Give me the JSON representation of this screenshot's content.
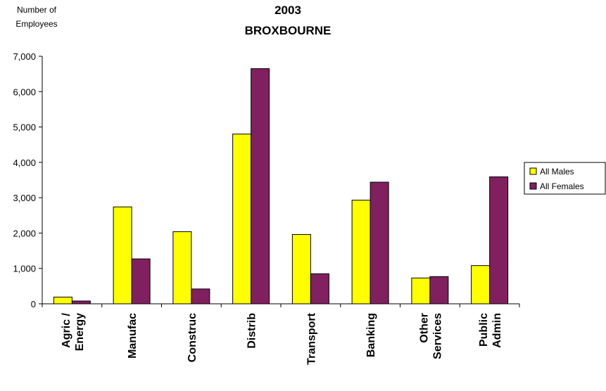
{
  "chart_data": {
    "type": "bar",
    "title_line1": "2003",
    "title_line2": "BROXBOURNE",
    "ylabel_line1": "Number of",
    "ylabel_line2": "Employees",
    "xlabel": "",
    "ylim": [
      0,
      7000
    ],
    "yticks": [
      0,
      1000,
      2000,
      3000,
      4000,
      5000,
      6000,
      7000
    ],
    "ytick_labels": [
      "0",
      "1,000",
      "2,000",
      "3,000",
      "4,000",
      "5,000",
      "6,000",
      "7,000"
    ],
    "categories": [
      [
        "Agric /",
        "Energy"
      ],
      [
        "Manufac"
      ],
      [
        "Construc"
      ],
      [
        "Distrib"
      ],
      [
        "Transport"
      ],
      [
        "Banking"
      ],
      [
        "Other",
        "Services"
      ],
      [
        "Public",
        "Admin"
      ]
    ],
    "series": [
      {
        "name": "All Males",
        "color": "#ffff00",
        "values": [
          190,
          2740,
          2040,
          4800,
          1960,
          2930,
          730,
          1080
        ]
      },
      {
        "name": "All Females",
        "color": "#80205f",
        "values": [
          80,
          1270,
          420,
          6650,
          850,
          3440,
          770,
          3590
        ]
      }
    ],
    "grid": false,
    "legend_position": "right"
  }
}
